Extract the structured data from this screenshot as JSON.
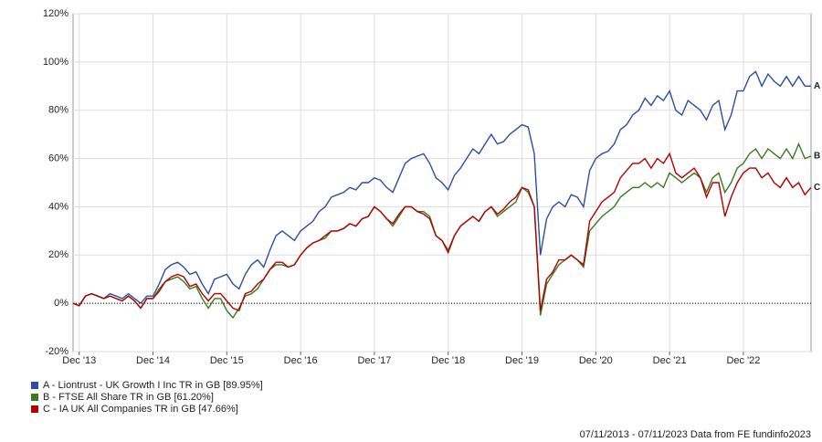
{
  "chart_data": {
    "type": "line",
    "x": [
      "2013-11",
      "2013-12",
      "2014-01",
      "2014-02",
      "2014-03",
      "2014-04",
      "2014-05",
      "2014-06",
      "2014-07",
      "2014-08",
      "2014-09",
      "2014-10",
      "2014-11",
      "2014-12",
      "2015-01",
      "2015-02",
      "2015-03",
      "2015-04",
      "2015-05",
      "2015-06",
      "2015-07",
      "2015-08",
      "2015-09",
      "2015-10",
      "2015-11",
      "2015-12",
      "2016-01",
      "2016-02",
      "2016-03",
      "2016-04",
      "2016-05",
      "2016-06",
      "2016-07",
      "2016-08",
      "2016-09",
      "2016-10",
      "2016-11",
      "2016-12",
      "2017-01",
      "2017-02",
      "2017-03",
      "2017-04",
      "2017-05",
      "2017-06",
      "2017-07",
      "2017-08",
      "2017-09",
      "2017-10",
      "2017-11",
      "2017-12",
      "2018-01",
      "2018-02",
      "2018-03",
      "2018-04",
      "2018-05",
      "2018-06",
      "2018-07",
      "2018-08",
      "2018-09",
      "2018-10",
      "2018-11",
      "2018-12",
      "2019-01",
      "2019-02",
      "2019-03",
      "2019-04",
      "2019-05",
      "2019-06",
      "2019-07",
      "2019-08",
      "2019-09",
      "2019-10",
      "2019-11",
      "2019-12",
      "2020-01",
      "2020-02",
      "2020-03",
      "2020-04",
      "2020-05",
      "2020-06",
      "2020-07",
      "2020-08",
      "2020-09",
      "2020-10",
      "2020-11",
      "2020-12",
      "2021-01",
      "2021-02",
      "2021-03",
      "2021-04",
      "2021-05",
      "2021-06",
      "2021-07",
      "2021-08",
      "2021-09",
      "2021-10",
      "2021-11",
      "2021-12",
      "2022-01",
      "2022-02",
      "2022-03",
      "2022-04",
      "2022-05",
      "2022-06",
      "2022-07",
      "2022-08",
      "2022-09",
      "2022-10",
      "2022-11",
      "2022-12",
      "2023-01",
      "2023-02",
      "2023-03",
      "2023-04",
      "2023-05",
      "2023-06",
      "2023-07",
      "2023-08",
      "2023-09",
      "2023-10",
      "2023-11"
    ],
    "series": [
      {
        "name": "A - Liontrust - UK Growth I Inc TR in GB [89.95%]",
        "label": "A",
        "color": "#2b4ea2",
        "values": [
          0,
          -1,
          3,
          4,
          3,
          2,
          4,
          3,
          2,
          4,
          2,
          0,
          3,
          3,
          8,
          14,
          16,
          17,
          15,
          12,
          13,
          8,
          4,
          10,
          11,
          12,
          8,
          6,
          12,
          16,
          18,
          15,
          22,
          28,
          30,
          28,
          26,
          30,
          32,
          34,
          38,
          40,
          44,
          45,
          46,
          48,
          47,
          50,
          50,
          52,
          51,
          48,
          46,
          52,
          58,
          60,
          61,
          62,
          58,
          52,
          50,
          47,
          53,
          56,
          60,
          64,
          62,
          66,
          70,
          66,
          67,
          70,
          72,
          74,
          73,
          62,
          20,
          35,
          40,
          42,
          40,
          45,
          44,
          40,
          55,
          60,
          62,
          63,
          66,
          72,
          74,
          78,
          80,
          85,
          82,
          86,
          84,
          88,
          80,
          78,
          84,
          82,
          80,
          76,
          82,
          84,
          72,
          78,
          88,
          88,
          94,
          96,
          90,
          95,
          92,
          90,
          94,
          90,
          94,
          90,
          90
        ]
      },
      {
        "name": "B - FTSE All Share TR in GB [61.20%]",
        "label": "B",
        "color": "#3b7a1c",
        "values": [
          0,
          -1,
          3,
          4,
          3,
          2,
          3,
          2,
          1,
          3,
          1,
          -2,
          2,
          2,
          6,
          9,
          10,
          11,
          9,
          6,
          7,
          2,
          -2,
          2,
          2,
          -3,
          -6,
          -2,
          3,
          4,
          6,
          10,
          14,
          16,
          16,
          15,
          16,
          20,
          23,
          25,
          26,
          27,
          30,
          30,
          31,
          33,
          32,
          35,
          36,
          40,
          38,
          35,
          32,
          36,
          40,
          40,
          38,
          38,
          36,
          28,
          26,
          22,
          28,
          32,
          34,
          36,
          34,
          38,
          40,
          36,
          38,
          40,
          42,
          48,
          46,
          40,
          -5,
          8,
          12,
          16,
          18,
          20,
          18,
          15,
          30,
          33,
          36,
          38,
          40,
          44,
          46,
          48,
          48,
          50,
          48,
          50,
          48,
          54,
          52,
          50,
          52,
          54,
          52,
          46,
          52,
          54,
          46,
          50,
          56,
          58,
          62,
          64,
          60,
          64,
          62,
          60,
          64,
          60,
          66,
          60,
          61
        ]
      },
      {
        "name": "C - IA UK All Companies TR in GB [47.66%]",
        "label": "C",
        "color": "#b30000",
        "values": [
          0,
          -1,
          3,
          4,
          3,
          2,
          3,
          2,
          1,
          3,
          1,
          -2,
          2,
          2,
          5,
          9,
          11,
          12,
          11,
          7,
          8,
          4,
          1,
          4,
          4,
          1,
          -2,
          -3,
          4,
          5,
          8,
          10,
          14,
          17,
          17,
          15,
          16,
          20,
          23,
          25,
          26,
          28,
          30,
          30,
          31,
          33,
          32,
          35,
          36,
          40,
          38,
          35,
          33,
          37,
          40,
          40,
          38,
          37,
          35,
          28,
          26,
          21,
          28,
          32,
          34,
          36,
          34,
          38,
          40,
          37,
          39,
          42,
          44,
          48,
          47,
          40,
          -3,
          10,
          13,
          18,
          18,
          20,
          18,
          16,
          34,
          38,
          42,
          44,
          46,
          52,
          55,
          58,
          58,
          60,
          56,
          60,
          58,
          62,
          54,
          52,
          54,
          56,
          52,
          44,
          50,
          50,
          36,
          44,
          50,
          54,
          56,
          56,
          52,
          54,
          50,
          48,
          52,
          48,
          50,
          45,
          48
        ]
      }
    ],
    "xlim": [
      "2013-11",
      "2023-11"
    ],
    "xticks": [
      {
        "value": "2013-12",
        "label": "Dec '13"
      },
      {
        "value": "2014-12",
        "label": "Dec '14"
      },
      {
        "value": "2015-12",
        "label": "Dec '15"
      },
      {
        "value": "2016-12",
        "label": "Dec '16"
      },
      {
        "value": "2017-12",
        "label": "Dec '17"
      },
      {
        "value": "2018-12",
        "label": "Dec '18"
      },
      {
        "value": "2019-12",
        "label": "Dec '19"
      },
      {
        "value": "2020-12",
        "label": "Dec '20"
      },
      {
        "value": "2021-12",
        "label": "Dec '21"
      },
      {
        "value": "2022-12",
        "label": "Dec '22"
      }
    ],
    "ylim": [
      -20,
      120
    ],
    "yticks": [
      {
        "value": -20,
        "label": "-20%"
      },
      {
        "value": 0,
        "label": "0%"
      },
      {
        "value": 20,
        "label": "20%"
      },
      {
        "value": 40,
        "label": "40%"
      },
      {
        "value": 60,
        "label": "60%"
      },
      {
        "value": 80,
        "label": "80%"
      },
      {
        "value": 100,
        "label": "100%"
      },
      {
        "value": 120,
        "label": "120%"
      }
    ],
    "grid": true,
    "footer": "07/11/2013 - 07/11/2023 Data from FE fundinfo2023"
  }
}
